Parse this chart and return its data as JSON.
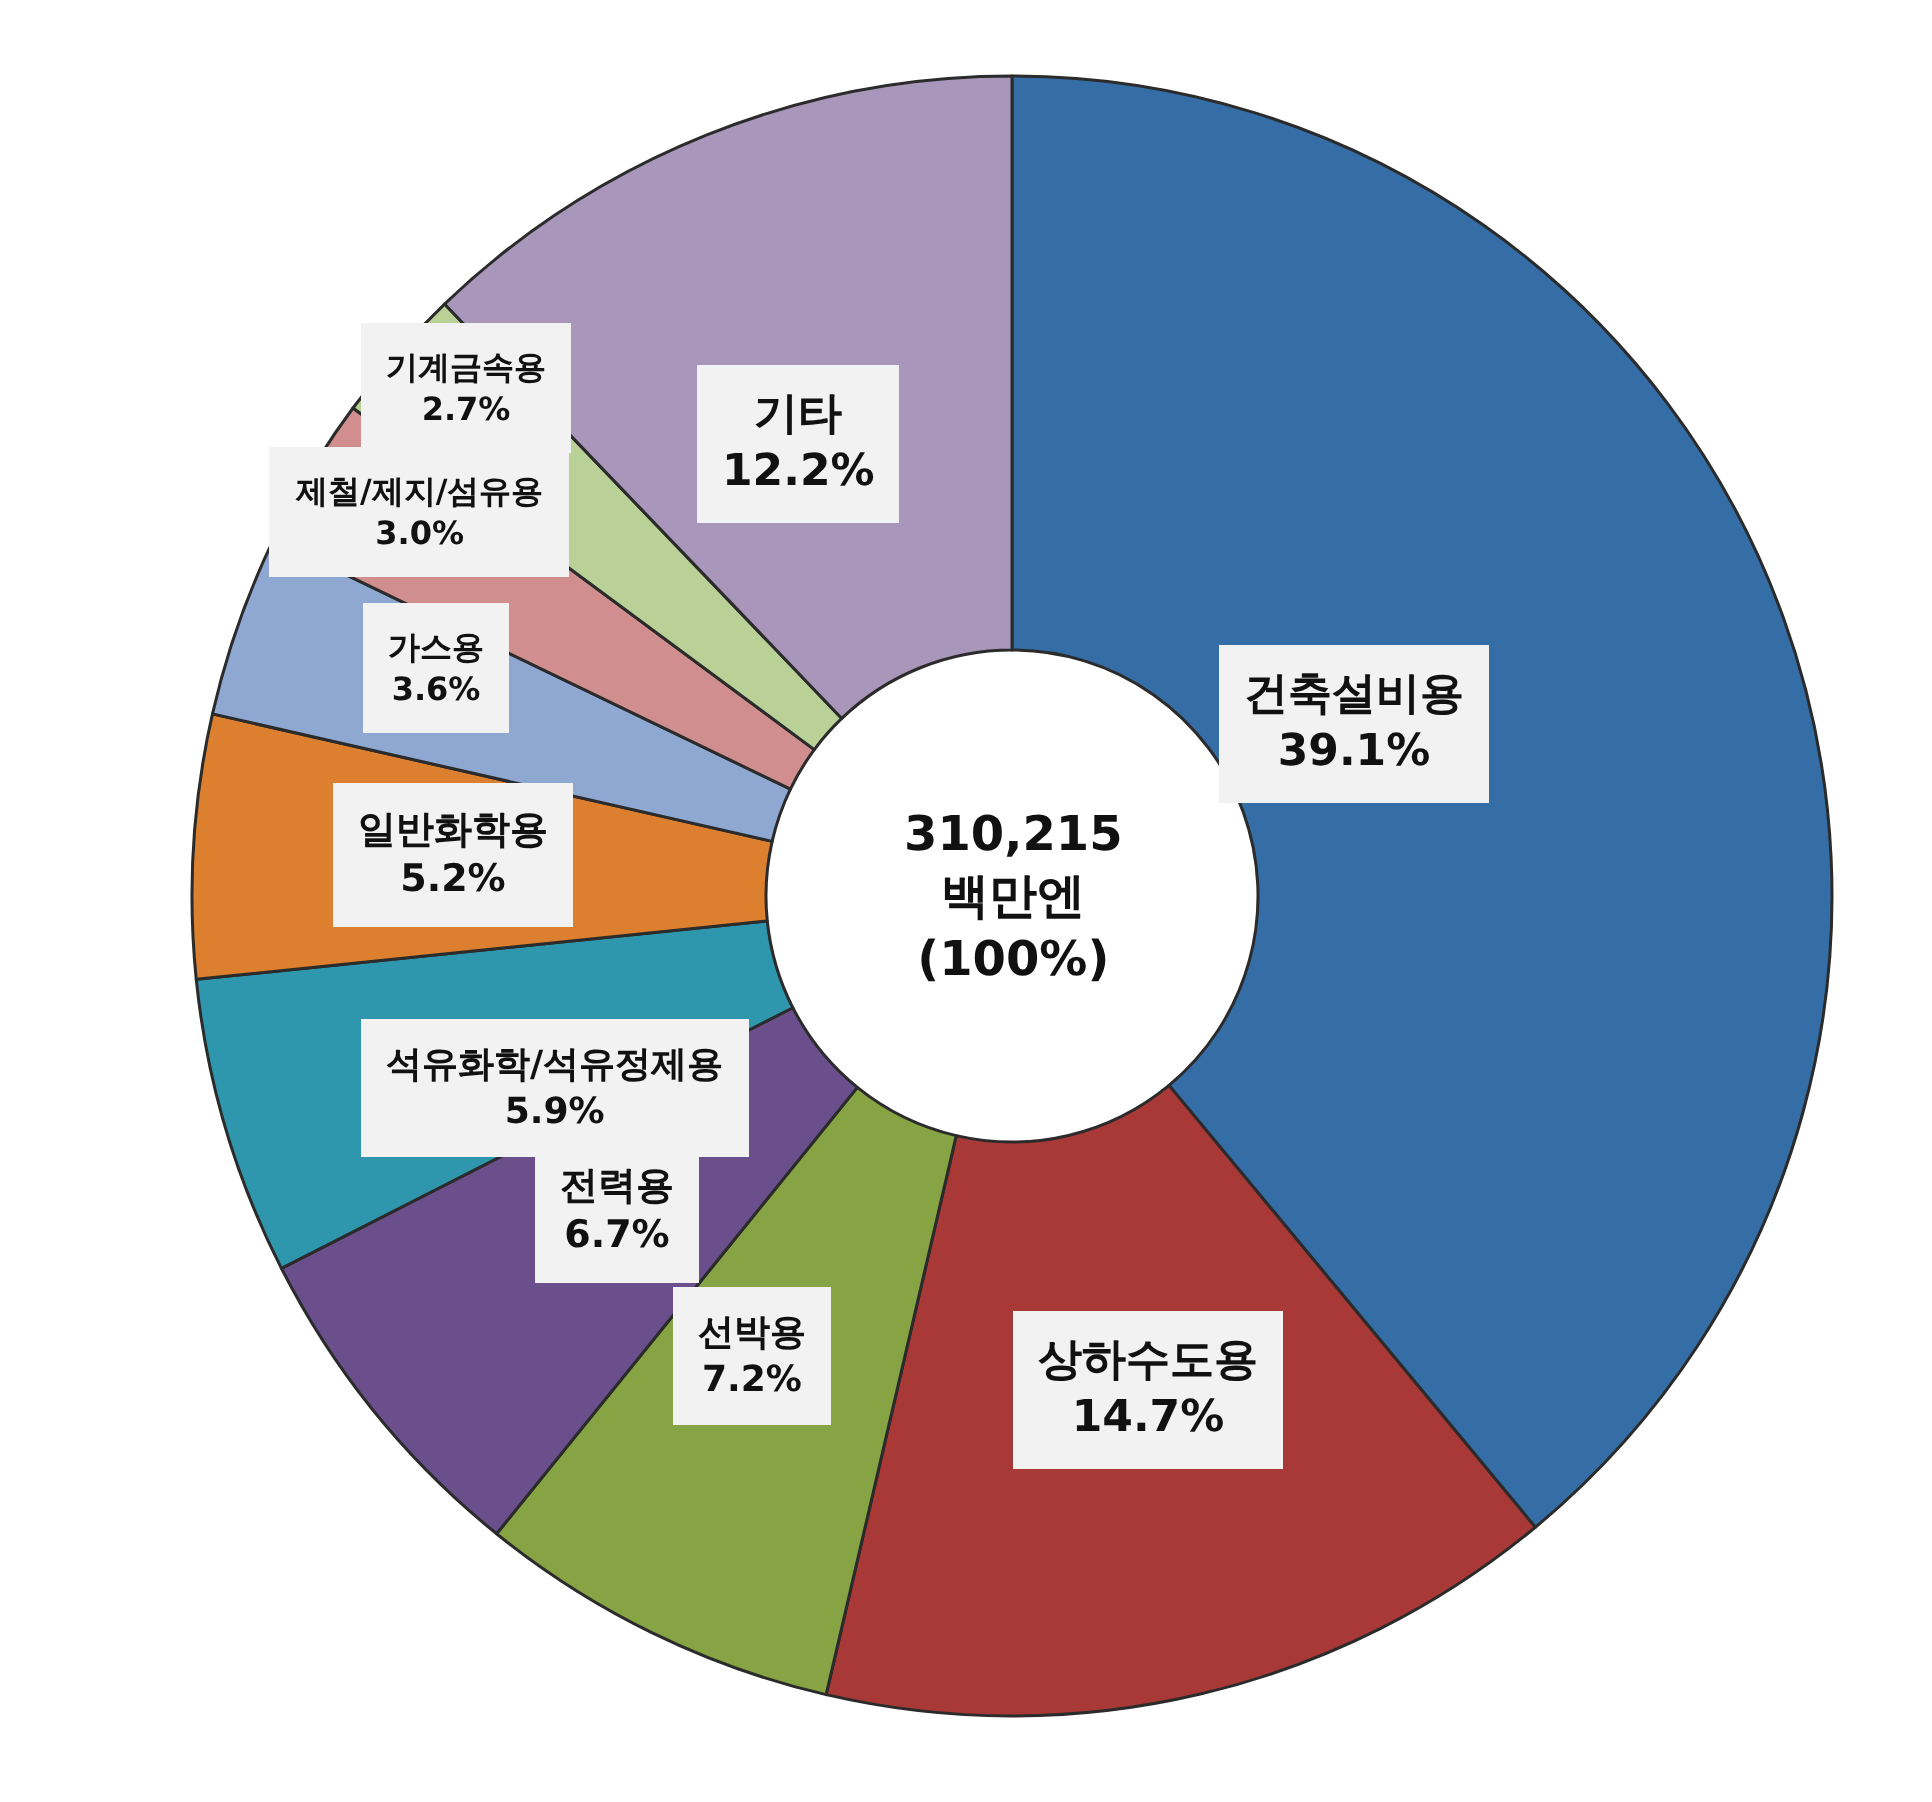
{
  "chart_data": {
    "type": "donut",
    "categories": [
      "건축설비용",
      "상하수도용",
      "선박용",
      "전력용",
      "석유화학/석유정제용",
      "일반화학용",
      "가스용",
      "제철/제지/섬유용",
      "기계금속용",
      "기타"
    ],
    "values": [
      39.1,
      14.7,
      7.2,
      6.7,
      5.9,
      5.2,
      3.6,
      3.0,
      2.7,
      12.2
    ],
    "value_labels": [
      "39.1%",
      "14.7%",
      "7.2%",
      "6.7%",
      "5.9%",
      "5.2%",
      "3.6%",
      "3.0%",
      "2.7%",
      "12.2%"
    ],
    "colors": [
      "#356ea6",
      "#a83937",
      "#86a443",
      "#6b4f8c",
      "#2e96ad",
      "#dc7f2e",
      "#8ea8d1",
      "#d08f8e",
      "#b9d097",
      "#a897bb"
    ],
    "annotations": [
      "310,215\n백만엔\n(100%)"
    ]
  }
}
